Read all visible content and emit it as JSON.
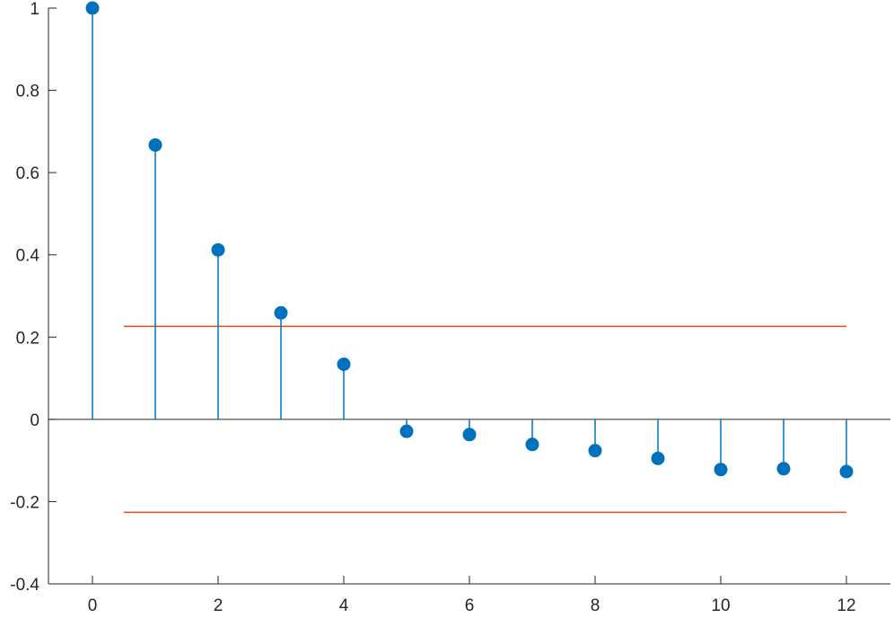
{
  "chart_data": {
    "type": "stem",
    "title": "",
    "xlabel": "",
    "ylabel": "",
    "xlim": [
      -0.7,
      12.7
    ],
    "ylim": [
      -0.4,
      1
    ],
    "x_ticks": [
      0,
      2,
      4,
      6,
      8,
      10,
      12
    ],
    "x_tick_labels": [
      "0",
      "2",
      "4",
      "6",
      "8",
      "10",
      "12"
    ],
    "y_ticks": [
      -0.4,
      -0.2,
      0,
      0.2,
      0.4,
      0.6,
      0.8,
      1
    ],
    "y_tick_labels": [
      "-0.4",
      "-0.2",
      "0",
      "0.2",
      "0.4",
      "0.6",
      "0.8",
      "1"
    ],
    "series": [
      {
        "x": [
          0,
          1,
          2,
          3,
          4,
          5,
          6,
          7,
          8,
          9,
          10,
          11,
          12
        ],
        "values": [
          1.0,
          0.667,
          0.412,
          0.259,
          0.134,
          -0.029,
          -0.037,
          -0.061,
          -0.076,
          -0.095,
          -0.122,
          -0.12,
          -0.127
        ],
        "color": "#0072BD"
      }
    ],
    "bounds": {
      "x_range": [
        0.5,
        12
      ],
      "upper": 0.226,
      "lower": -0.226,
      "color": "#D95319"
    },
    "baseline": 0,
    "grid": false,
    "legend": false
  }
}
